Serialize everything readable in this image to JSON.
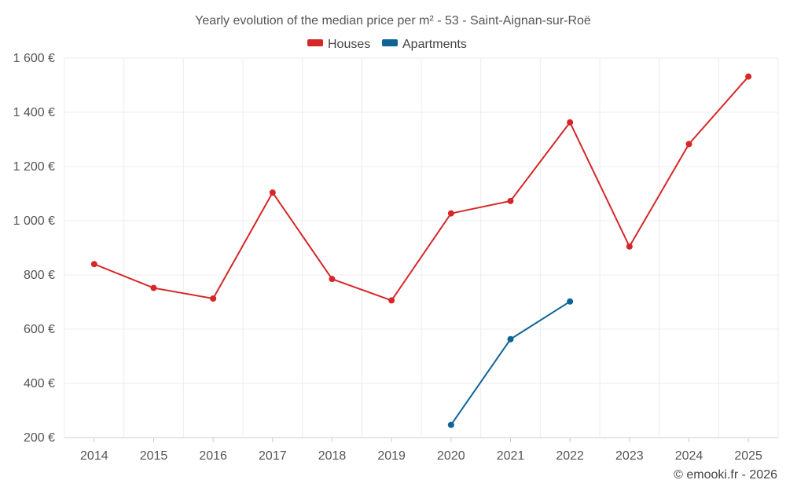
{
  "chart_data": {
    "type": "line",
    "title": "Yearly evolution of the median price per m² - 53 - Saint-Aignan-sur-Roë",
    "categories": [
      "2014",
      "2015",
      "2016",
      "2017",
      "2018",
      "2019",
      "2020",
      "2021",
      "2022",
      "2023",
      "2024",
      "2025"
    ],
    "ylim": [
      200,
      1600
    ],
    "yticks": [
      200,
      400,
      600,
      800,
      1000,
      1200,
      1400,
      1600
    ],
    "ytick_labels": [
      "200 €",
      "400 €",
      "600 €",
      "800 €",
      "1 000 €",
      "1 200 €",
      "1 400 €",
      "1 600 €"
    ],
    "grid": true,
    "legend_position": "top-center",
    "series": [
      {
        "name": "Houses",
        "color": "#d62728",
        "values": [
          840,
          752,
          713,
          1104,
          785,
          706,
          1027,
          1073,
          1363,
          905,
          1283,
          1532
        ]
      },
      {
        "name": "Apartments",
        "color": "#0e6496",
        "values": [
          null,
          null,
          null,
          null,
          null,
          null,
          247,
          563,
          702,
          null,
          null,
          null
        ]
      }
    ]
  },
  "credit": "© emooki.fr - 2026"
}
